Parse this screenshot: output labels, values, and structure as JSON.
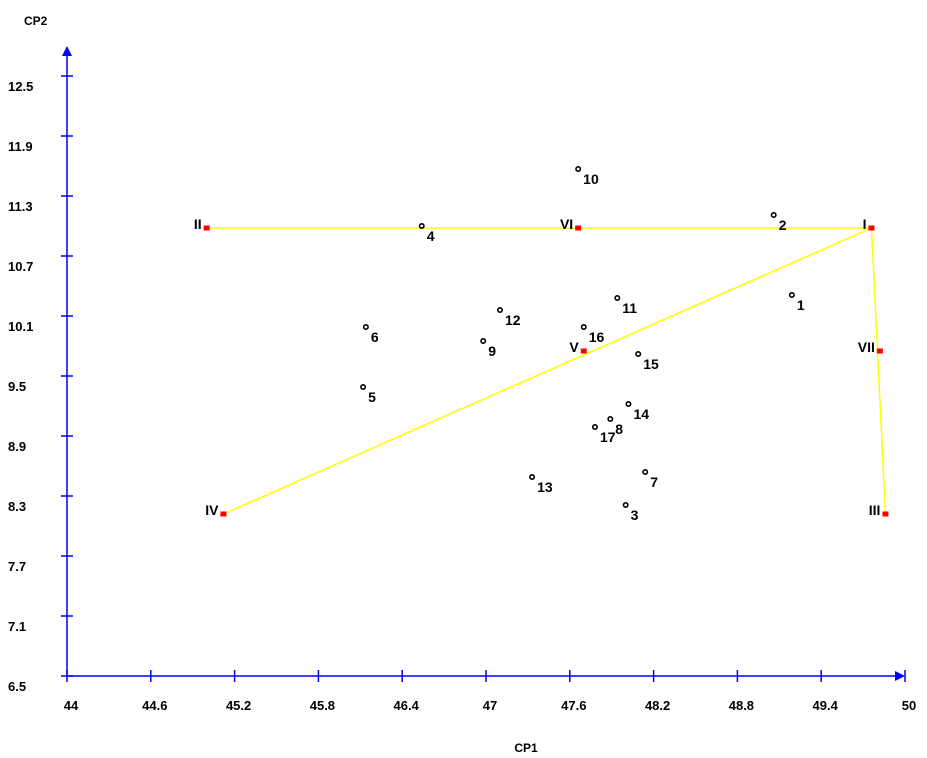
{
  "chart_data": {
    "type": "scatter",
    "xlabel": "CP1",
    "ylabel": "CP2",
    "xlim": [
      44,
      50
    ],
    "ylim": [
      6.5,
      12.8
    ],
    "x_ticks": [
      "44",
      "44.6",
      "45.2",
      "45.8",
      "46.4",
      "47",
      "47.6",
      "48.2",
      "48.8",
      "49.4",
      "50"
    ],
    "y_ticks": [
      "6.5",
      "7.1",
      "7.7",
      "8.3",
      "8.9",
      "9.5",
      "10.1",
      "10.7",
      "11.3",
      "11.9",
      "12.5"
    ],
    "points": [
      {
        "label": "1",
        "x": 49.19,
        "y": 10.31
      },
      {
        "label": "2",
        "x": 49.06,
        "y": 11.11
      },
      {
        "label": "3",
        "x": 48.0,
        "y": 8.21
      },
      {
        "label": "4",
        "x": 46.54,
        "y": 11.0
      },
      {
        "label": "5",
        "x": 46.12,
        "y": 9.39
      },
      {
        "label": "6",
        "x": 46.14,
        "y": 9.99
      },
      {
        "label": "7",
        "x": 48.14,
        "y": 8.54
      },
      {
        "label": "8",
        "x": 47.89,
        "y": 9.07
      },
      {
        "label": "9",
        "x": 46.98,
        "y": 9.85
      },
      {
        "label": "10",
        "x": 47.66,
        "y": 11.57
      },
      {
        "label": "11",
        "x": 47.94,
        "y": 10.28
      },
      {
        "label": "12",
        "x": 47.1,
        "y": 10.16
      },
      {
        "label": "13",
        "x": 47.33,
        "y": 8.49
      },
      {
        "label": "14",
        "x": 48.02,
        "y": 9.22
      },
      {
        "label": "15",
        "x": 48.09,
        "y": 9.72
      },
      {
        "label": "16",
        "x": 47.7,
        "y": 9.99
      },
      {
        "label": "17",
        "x": 47.78,
        "y": 8.99
      }
    ],
    "groups": [
      {
        "label": "I",
        "x": 49.76,
        "y": 10.98
      },
      {
        "label": "II",
        "x": 45.0,
        "y": 10.98
      },
      {
        "label": "III",
        "x": 49.86,
        "y": 8.12
      },
      {
        "label": "IV",
        "x": 45.12,
        "y": 8.12
      },
      {
        "label": "V",
        "x": 47.7,
        "y": 9.75
      },
      {
        "label": "VI",
        "x": 47.66,
        "y": 10.98
      },
      {
        "label": "VII",
        "x": 49.82,
        "y": 9.75
      }
    ],
    "connections": [
      [
        "II",
        "I"
      ],
      [
        "IV",
        "I"
      ],
      [
        "I",
        "III"
      ]
    ],
    "colors": {
      "axis": "#0000ff",
      "line": "#ffff00",
      "group_marker": "#ff0000",
      "point": "#000000"
    },
    "grid": false
  }
}
